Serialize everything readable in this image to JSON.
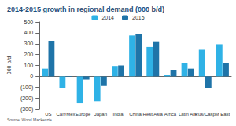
{
  "chart_data": {
    "type": "bar",
    "title": "2014-2015 growth in regional demand (000 b/d)",
    "y_label": "000 b/d",
    "source": "Source: Wood Mackenzie",
    "categories": [
      "US",
      "Can/Mex",
      "Europe",
      "Japan",
      "India",
      "China",
      "Rest Asia",
      "Africa",
      "Latin Am",
      "Rus/Casp",
      "M East"
    ],
    "series": [
      {
        "name": "2014",
        "color": "#2fb2e6",
        "values": [
          70,
          -110,
          -250,
          -230,
          95,
          375,
          270,
          10,
          125,
          245,
          295
        ]
      },
      {
        "name": "2015",
        "color": "#1f74a8",
        "values": [
          320,
          -10,
          -30,
          -90,
          100,
          390,
          315,
          55,
          70,
          -110,
          120
        ]
      }
    ],
    "ylim": [
      -300,
      500
    ],
    "yticks": [
      {
        "value": -300,
        "label": "(300)"
      },
      {
        "value": -200,
        "label": "(200)"
      },
      {
        "value": -100,
        "label": "(100)"
      },
      0,
      100,
      200,
      300,
      400,
      500
    ],
    "grid": false,
    "legend": "top"
  }
}
